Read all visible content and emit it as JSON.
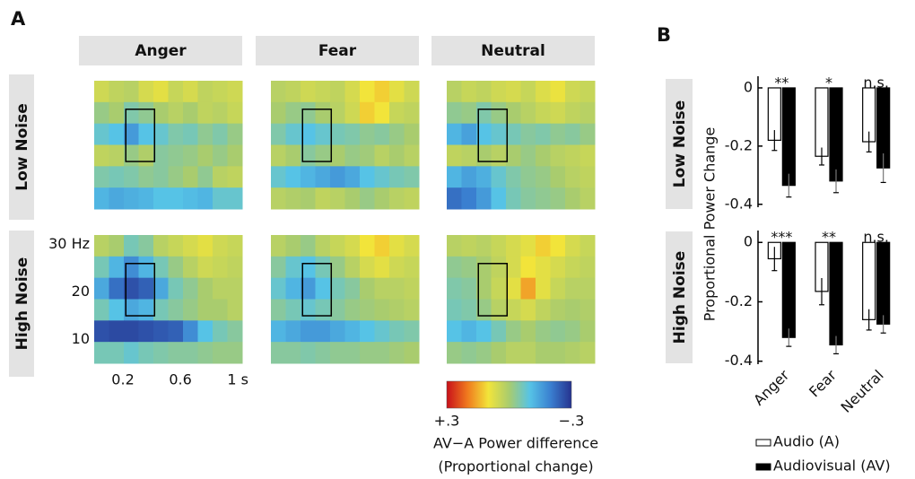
{
  "panel_a": {
    "label": "A",
    "columns": [
      "Anger",
      "Fear",
      "Neutral"
    ],
    "rows": [
      "Low Noise",
      "High Noise"
    ],
    "xlim": [
      0,
      1.03
    ],
    "ylim": [
      5,
      32
    ],
    "xticks": [
      0.2,
      0.6,
      {
        "value": 1,
        "label": "1 s"
      }
    ],
    "yticks": [
      {
        "value": 30,
        "label": "30 Hz"
      },
      20,
      10
    ],
    "roi": {
      "x": [
        0.22,
        0.42
      ],
      "y": [
        15,
        26
      ]
    },
    "colorbar": {
      "zlim": [
        0.3,
        -0.3
      ],
      "colormap": [
        "#c8101a",
        "#f07a1e",
        "#f2e43a",
        "#a9cc6e",
        "#56c3e6",
        "#3a7fd0",
        "#26338f"
      ],
      "ticks": [
        {
          "value": 0.3,
          "label": "+.3"
        },
        {
          "value": -0.3,
          "label": "−.3"
        }
      ],
      "caption": [
        "AV−A Power difference",
        "(Proportional change)"
      ]
    }
  },
  "panel_b": {
    "label": "B",
    "ylabel": "Proportional Power Change"
  },
  "chart_data": [
    {
      "type": "heatmap",
      "z": [
        [
          0.05,
          0.03,
          0.02,
          0.06,
          0.08,
          0.04,
          0.06,
          0.03,
          0.04,
          0.05
        ],
        [
          -0.02,
          0,
          -0.05,
          -0.03,
          0,
          0.02,
          0,
          0.03,
          0.02,
          0.04
        ],
        [
          -0.08,
          -0.1,
          -0.16,
          -0.1,
          -0.08,
          -0.05,
          -0.06,
          -0.03,
          -0.05,
          -0.02
        ],
        [
          0.03,
          0.02,
          -0.02,
          0.01,
          -0.04,
          -0.03,
          -0.02,
          0,
          -0.02,
          0
        ],
        [
          -0.05,
          -0.06,
          -0.05,
          -0.03,
          -0.04,
          -0.02,
          0,
          -0.03,
          0.02,
          0.03
        ],
        [
          -0.12,
          -0.14,
          -0.13,
          -0.12,
          -0.1,
          -0.1,
          -0.11,
          -0.12,
          -0.08,
          -0.08
        ]
      ]
    },
    {
      "type": "heatmap",
      "z": [
        [
          0.02,
          0.03,
          0.05,
          0.04,
          0.03,
          0.06,
          0.1,
          0.12,
          0.08,
          0.05
        ],
        [
          0,
          -0.02,
          -0.03,
          0,
          0.02,
          0.05,
          0.12,
          0.1,
          0.04,
          0.03
        ],
        [
          -0.05,
          -0.08,
          -0.1,
          -0.08,
          -0.06,
          -0.05,
          -0.03,
          -0.04,
          -0.02,
          0
        ],
        [
          0.02,
          0,
          -0.04,
          -0.02,
          0,
          -0.02,
          -0.01,
          0.02,
          0,
          0.02
        ],
        [
          -0.08,
          -0.1,
          -0.12,
          -0.14,
          -0.16,
          -0.14,
          -0.1,
          -0.08,
          -0.06,
          -0.05
        ],
        [
          0.02,
          0.01,
          0,
          0.03,
          0.02,
          0,
          -0.02,
          0,
          0.02,
          0.03
        ]
      ]
    },
    {
      "type": "heatmap",
      "z": [
        [
          0.02,
          0.04,
          0.03,
          0.05,
          0.06,
          0.04,
          0.07,
          0.09,
          0.05,
          0.04
        ],
        [
          -0.03,
          -0.02,
          -0.05,
          -0.02,
          0,
          0.02,
          0.04,
          0.05,
          0.03,
          0.02
        ],
        [
          -0.12,
          -0.15,
          -0.1,
          -0.08,
          -0.06,
          -0.04,
          -0.05,
          -0.03,
          -0.04,
          -0.02
        ],
        [
          0.03,
          0.02,
          0,
          0.02,
          0,
          -0.02,
          0,
          0.02,
          0.03,
          0.04
        ],
        [
          -0.12,
          -0.15,
          -0.13,
          -0.08,
          -0.05,
          -0.03,
          -0.02,
          0,
          0.02,
          0.03
        ],
        [
          -0.22,
          -0.2,
          -0.16,
          -0.1,
          -0.06,
          -0.04,
          -0.03,
          -0.02,
          0,
          0.02
        ]
      ]
    },
    {
      "type": "heatmap",
      "z": [
        [
          0.02,
          0,
          -0.06,
          -0.04,
          0.02,
          0.04,
          0.06,
          0.08,
          0.05,
          0.04
        ],
        [
          -0.06,
          -0.12,
          -0.18,
          -0.12,
          -0.06,
          -0.02,
          0.02,
          0.05,
          0.04,
          0.03
        ],
        [
          -0.14,
          -0.22,
          -0.26,
          -0.24,
          -0.14,
          -0.06,
          -0.03,
          0,
          0.02,
          0.02
        ],
        [
          -0.06,
          -0.1,
          -0.14,
          -0.12,
          -0.06,
          -0.04,
          -0.02,
          0,
          0,
          0.02
        ],
        [
          -0.26,
          -0.27,
          -0.27,
          -0.26,
          -0.25,
          -0.24,
          -0.18,
          -0.1,
          -0.06,
          -0.04
        ],
        [
          -0.06,
          -0.06,
          -0.08,
          -0.06,
          -0.05,
          -0.04,
          -0.04,
          -0.03,
          -0.02,
          -0.02
        ]
      ]
    },
    {
      "type": "heatmap",
      "z": [
        [
          0.02,
          0,
          -0.02,
          0.02,
          0.04,
          0.06,
          0.1,
          0.12,
          0.08,
          0.06
        ],
        [
          -0.04,
          -0.08,
          -0.1,
          -0.06,
          -0.02,
          0.02,
          0.06,
          0.08,
          0.05,
          0.04
        ],
        [
          -0.08,
          -0.12,
          -0.16,
          -0.1,
          -0.06,
          -0.04,
          0,
          0.02,
          0.02,
          0.03
        ],
        [
          -0.04,
          -0.06,
          -0.08,
          -0.06,
          -0.04,
          -0.02,
          -0.01,
          0,
          0.01,
          0.02
        ],
        [
          -0.12,
          -0.14,
          -0.16,
          -0.16,
          -0.14,
          -0.12,
          -0.1,
          -0.08,
          -0.06,
          -0.05
        ],
        [
          -0.04,
          -0.04,
          -0.05,
          -0.04,
          -0.03,
          -0.03,
          -0.02,
          -0.02,
          -0.01,
          0
        ]
      ]
    },
    {
      "type": "heatmap",
      "z": [
        [
          0.02,
          0.03,
          0.02,
          0.04,
          0.06,
          0.08,
          0.12,
          0.1,
          0.06,
          0.04
        ],
        [
          -0.03,
          -0.02,
          0,
          0.03,
          0.06,
          0.1,
          0.08,
          0.06,
          0.04,
          0.03
        ],
        [
          -0.05,
          -0.04,
          0,
          0.04,
          0.08,
          0.16,
          0.08,
          0.04,
          0.02,
          0.02
        ],
        [
          -0.06,
          -0.05,
          -0.02,
          0.02,
          0.04,
          0.06,
          0.03,
          0.01,
          0,
          0.01
        ],
        [
          -0.1,
          -0.12,
          -0.1,
          -0.06,
          -0.02,
          0,
          -0.02,
          -0.03,
          -0.02,
          0
        ],
        [
          -0.02,
          -0.03,
          -0.02,
          0,
          0.02,
          0.02,
          0,
          0,
          0.01,
          0.02
        ]
      ]
    },
    {
      "type": "bar",
      "title": "Low Noise",
      "ylim": [
        -0.41,
        0.04
      ],
      "yticks": [
        0,
        -0.2,
        -0.4
      ],
      "annotations": [
        "**",
        "*",
        "n.s."
      ],
      "series": [
        {
          "color": "#ffffff",
          "values": [
            -0.18,
            -0.235,
            -0.185
          ],
          "errors": [
            0.035,
            0.03,
            0.035
          ]
        },
        {
          "color": "#000000",
          "values": [
            -0.335,
            -0.32,
            -0.275
          ],
          "errors": [
            0.04,
            0.04,
            0.05
          ]
        }
      ]
    },
    {
      "type": "bar",
      "title": "High Noise",
      "ylim": [
        -0.41,
        0.04
      ],
      "yticks": [
        0,
        -0.2,
        -0.4
      ],
      "annotations": [
        "***",
        "**",
        "n.s."
      ],
      "categories": [
        "Anger",
        "Fear",
        "Neutral"
      ],
      "series": [
        {
          "name": "Audio (A)",
          "color": "#ffffff",
          "values": [
            -0.055,
            -0.165,
            -0.26
          ],
          "errors": [
            0.04,
            0.045,
            0.035
          ]
        },
        {
          "name": "Audiovisual (AV)",
          "color": "#000000",
          "values": [
            -0.32,
            -0.345,
            -0.275
          ],
          "errors": [
            0.03,
            0.03,
            0.03
          ]
        }
      ]
    }
  ]
}
